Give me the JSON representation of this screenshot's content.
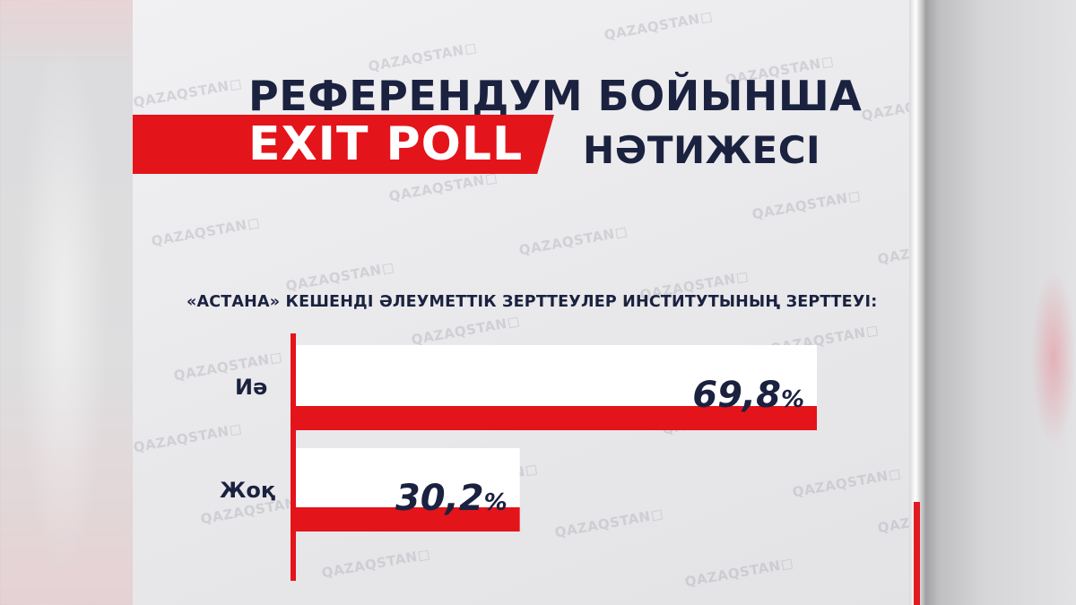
{
  "header": {
    "line1": "РЕФЕРЕНДУМ БОЙЫНША",
    "highlight": "EXIT POLL",
    "line2_suffix": "НӘТИЖЕСІ"
  },
  "watermark_text": "QAZAQSTAN",
  "colors": {
    "accent": "#e4141b",
    "text": "#1b2240",
    "bar_bg": "#ffffff"
  },
  "chart_data": {
    "type": "bar",
    "orientation": "horizontal",
    "title": "«АСТАНА» КЕШЕНДІ ӘЛЕУМЕТТІК ЗЕРТТЕУЛЕР ИНСТИТУТЫНЫҢ ЗЕРТТЕУІ:",
    "categories": [
      "Иә",
      "Жоқ"
    ],
    "values": [
      69.8,
      30.2
    ],
    "value_labels": [
      "69,8",
      "30,2"
    ],
    "unit": "%",
    "xlim": [
      0,
      69.8
    ]
  }
}
